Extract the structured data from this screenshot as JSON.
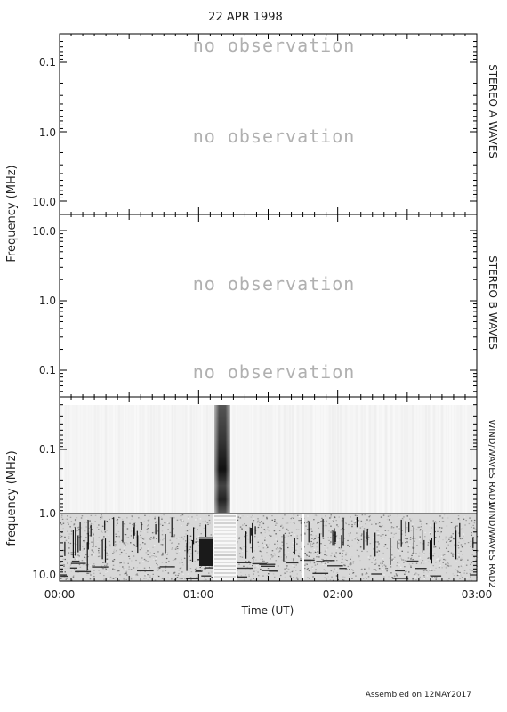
{
  "chart_data": {
    "type": "heatmap",
    "title": "22 APR 1998",
    "xlabel": "Time (UT)",
    "x_ticks": [
      "00:00",
      "01:00",
      "02:00",
      "03:00"
    ],
    "x_range_hours": [
      0,
      3
    ],
    "footer": "Assembled on 12MAY2017",
    "panels": [
      {
        "name": "STEREO A WAVES",
        "ylabel": "Frequency (MHz)",
        "y_scale": "log",
        "y_ticks": [
          "0.1",
          "1.0",
          "10.0"
        ],
        "no_observation_text": [
          "no observation",
          "no observation"
        ]
      },
      {
        "name": "STEREO B WAVES",
        "ylabel": "Frequency (MHz)",
        "y_scale": "log",
        "y_ticks": [
          "10.0",
          "1.0",
          "0.1"
        ],
        "no_observation_text": [
          "no observation",
          "no observation"
        ]
      },
      {
        "name_upper": "WIND/WAVES RAD1",
        "name_lower": "WIND/WAVES RAD2",
        "ylabel": "frequency (MHz)",
        "y_scale": "log",
        "y_ticks": [
          "0.1",
          "1.0",
          "10.0"
        ],
        "burst_time_hours": [
          1.1,
          1.18
        ]
      }
    ]
  }
}
